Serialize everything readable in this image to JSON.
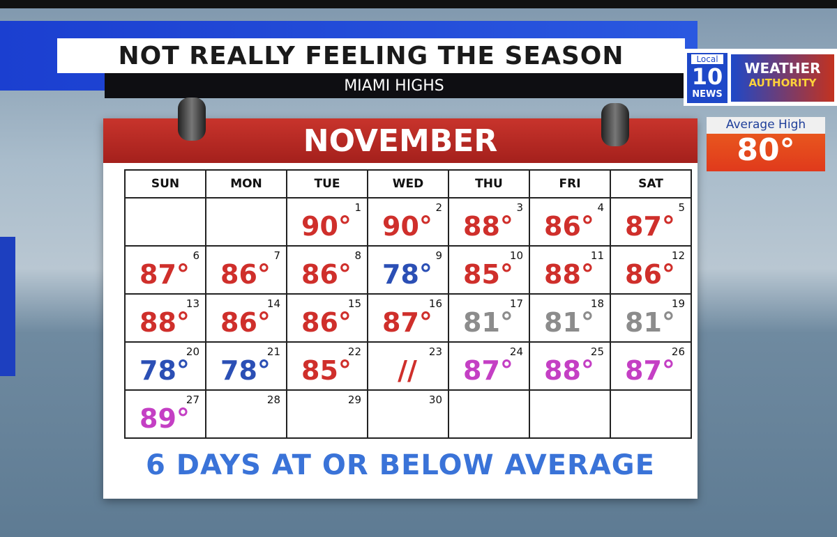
{
  "header": {
    "title": "NOT REALLY FEELING THE SEASON",
    "subtitle": "MIAMI HIGHS"
  },
  "logo": {
    "local": "Local",
    "number": "10",
    "news": "NEWS",
    "weather": "WEATHER",
    "authority": "AUTHORITY"
  },
  "average": {
    "label": "Average High",
    "value": "80°"
  },
  "calendar": {
    "month": "NOVEMBER",
    "weekdays": [
      "SUN",
      "MON",
      "TUE",
      "WED",
      "THU",
      "FRI",
      "SAT"
    ],
    "weeks": [
      [
        null,
        null,
        {
          "day": "1",
          "temp": "90°",
          "color": "#cf2f2b"
        },
        {
          "day": "2",
          "temp": "90°",
          "color": "#cf2f2b"
        },
        {
          "day": "3",
          "temp": "88°",
          "color": "#cf2f2b"
        },
        {
          "day": "4",
          "temp": "86°",
          "color": "#cf2f2b"
        },
        {
          "day": "5",
          "temp": "87°",
          "color": "#cf2f2b"
        }
      ],
      [
        {
          "day": "6",
          "temp": "87°",
          "color": "#cf2f2b"
        },
        {
          "day": "7",
          "temp": "86°",
          "color": "#cf2f2b"
        },
        {
          "day": "8",
          "temp": "86°",
          "color": "#cf2f2b"
        },
        {
          "day": "9",
          "temp": "78°",
          "color": "#2b4fb5"
        },
        {
          "day": "10",
          "temp": "85°",
          "color": "#cf2f2b"
        },
        {
          "day": "11",
          "temp": "88°",
          "color": "#cf2f2b"
        },
        {
          "day": "12",
          "temp": "86°",
          "color": "#cf2f2b"
        }
      ],
      [
        {
          "day": "13",
          "temp": "88°",
          "color": "#cf2f2b"
        },
        {
          "day": "14",
          "temp": "86°",
          "color": "#cf2f2b"
        },
        {
          "day": "15",
          "temp": "86°",
          "color": "#cf2f2b"
        },
        {
          "day": "16",
          "temp": "87°",
          "color": "#cf2f2b"
        },
        {
          "day": "17",
          "temp": "81°",
          "color": "#8c8c8c"
        },
        {
          "day": "18",
          "temp": "81°",
          "color": "#8c8c8c"
        },
        {
          "day": "19",
          "temp": "81°",
          "color": "#8c8c8c"
        }
      ],
      [
        {
          "day": "20",
          "temp": "78°",
          "color": "#2b4fb5"
        },
        {
          "day": "21",
          "temp": "78°",
          "color": "#2b4fb5"
        },
        {
          "day": "22",
          "temp": "85°",
          "color": "#cf2f2b"
        },
        {
          "day": "23",
          "temp": "//",
          "color": "#cf2f2b"
        },
        {
          "day": "24",
          "temp": "87°",
          "color": "#c43fc4"
        },
        {
          "day": "25",
          "temp": "88°",
          "color": "#c43fc4"
        },
        {
          "day": "26",
          "temp": "87°",
          "color": "#c43fc4"
        }
      ],
      [
        {
          "day": "27",
          "temp": "89°",
          "color": "#c43fc4"
        },
        {
          "day": "28"
        },
        {
          "day": "29"
        },
        {
          "day": "30"
        },
        null,
        null,
        null
      ]
    ]
  },
  "footer": "6 DAYS AT OR BELOW AVERAGE"
}
